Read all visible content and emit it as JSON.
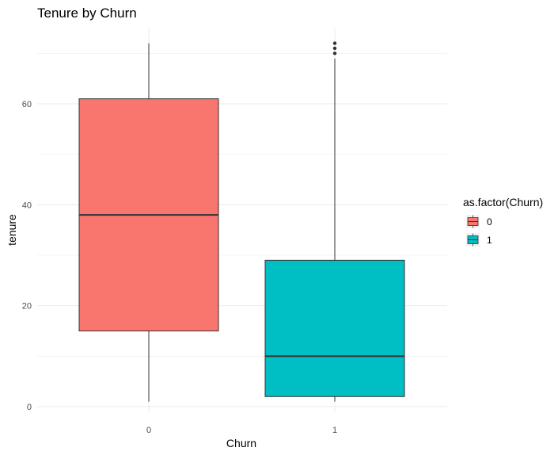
{
  "chart_data": {
    "type": "boxplot",
    "title": "Tenure by Churn",
    "xlabel": "Churn",
    "ylabel": "tenure",
    "categories": [
      "0",
      "1"
    ],
    "ylim": [
      0,
      72
    ],
    "yticks": [
      0,
      20,
      40,
      60
    ],
    "grid": true,
    "legend": {
      "title": "as.factor(Churn)",
      "position": "right",
      "entries": [
        "0",
        "1"
      ]
    },
    "boxes": [
      {
        "category": "0",
        "min": 1,
        "q1": 15,
        "median": 38,
        "q3": 61,
        "max": 72,
        "outliers": [],
        "fill": "#F8766D"
      },
      {
        "category": "1",
        "min": 1,
        "q1": 2,
        "median": 10,
        "q3": 29,
        "max": 69,
        "outliers": [
          70,
          71,
          72
        ],
        "fill": "#00BFC4"
      }
    ]
  }
}
